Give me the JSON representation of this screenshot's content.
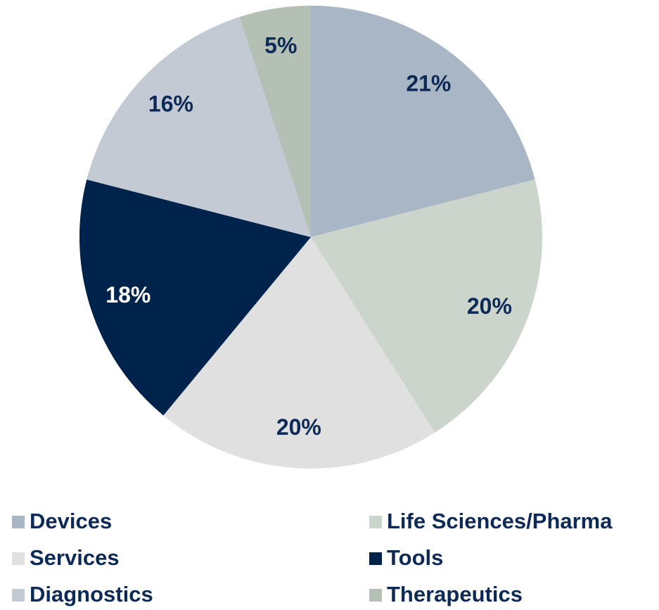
{
  "chart_data": {
    "type": "pie",
    "categories": [
      "Devices",
      "Life Sciences/Pharma",
      "Services",
      "Tools",
      "Diagnostics",
      "Therapeutics"
    ],
    "values": [
      21,
      20,
      20,
      18,
      16,
      5
    ],
    "value_labels": [
      "21%",
      "20%",
      "20%",
      "18%",
      "16%",
      "5%"
    ],
    "colors": [
      "#a9b6c5",
      "#ccd5cc",
      "#e0e0e0",
      "#00234b",
      "#c4cad4",
      "#b5c0b5"
    ],
    "label_colors": [
      "#0d2a56",
      "#0d2a56",
      "#0d2a56",
      "#ffffff",
      "#0d2a56",
      "#0d2a56"
    ],
    "legend": "bottom"
  }
}
